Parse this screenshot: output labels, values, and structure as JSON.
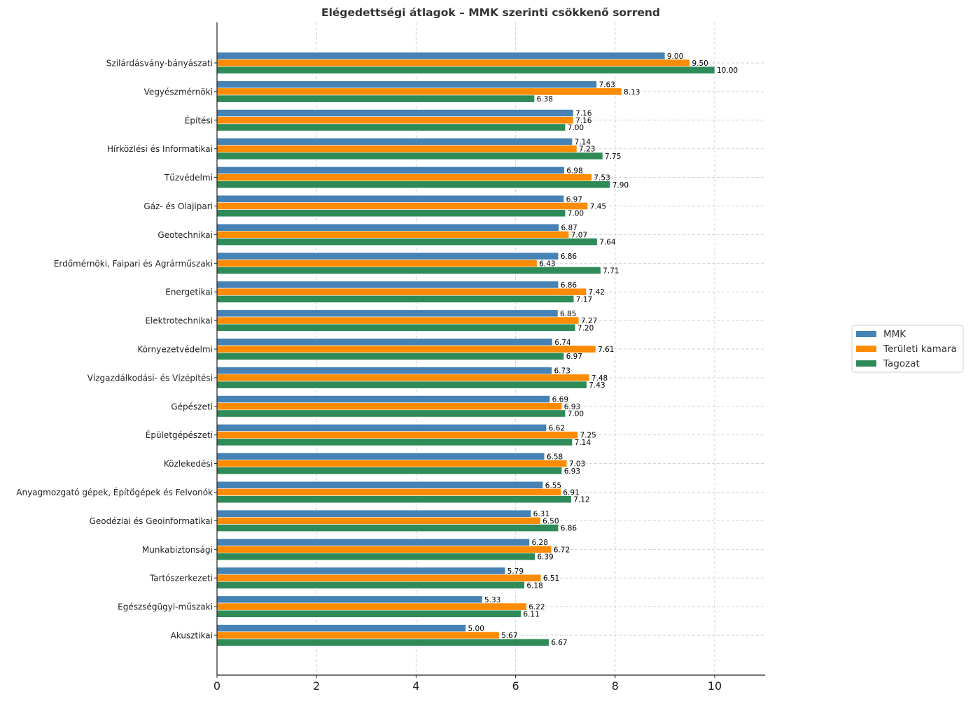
{
  "chart_data": {
    "type": "bar",
    "orientation": "horizontal",
    "title": "Elégedettségi átlagok – MMK szerinti csökkenő sorrend",
    "xlabel": "",
    "ylabel": "",
    "xlim": [
      0,
      11
    ],
    "xticks": [
      0,
      2,
      4,
      6,
      8,
      10
    ],
    "grid": true,
    "legend_position": "right",
    "categories": [
      "Szilárdásvány-bányászati",
      "Vegyészmérnöki",
      "Építési",
      "Hírközlési és Informatikai",
      "Tűzvédelmi",
      "Gáz- és Olajipari",
      "Geotechnikai",
      "Erdőmérnöki, Faipari és Agrárműszaki",
      "Energetikai",
      "Elektrotechnikai",
      "Környezetvédelmi",
      "Vízgazdálkodási- és Vízépítési",
      "Gépészeti",
      "Épületgépészeti",
      "Közlekedési",
      "Anyagmozgató gépek, Építőgépek és Felvonók",
      "Geodéziai és Geoinformatikai",
      "Munkabiztonsági",
      "Tartószerkezeti",
      "Egészségügyi-műszaki",
      "Akusztikai"
    ],
    "series": [
      {
        "name": "MMK",
        "color": "#4682b4",
        "values": [
          9.0,
          7.63,
          7.16,
          7.14,
          6.98,
          6.97,
          6.87,
          6.86,
          6.86,
          6.85,
          6.74,
          6.73,
          6.69,
          6.62,
          6.58,
          6.55,
          6.31,
          6.28,
          5.79,
          5.33,
          5.0
        ]
      },
      {
        "name": "Területi kamara",
        "color": "#ff8c00",
        "values": [
          9.5,
          8.13,
          7.16,
          7.23,
          7.53,
          7.45,
          7.07,
          6.43,
          7.42,
          7.27,
          7.61,
          7.48,
          6.93,
          7.25,
          7.03,
          6.91,
          6.5,
          6.72,
          6.51,
          6.22,
          5.67
        ]
      },
      {
        "name": "Tagozat",
        "color": "#2e8b57",
        "values": [
          10.0,
          6.38,
          7.0,
          7.75,
          7.9,
          7.0,
          7.64,
          7.71,
          7.17,
          7.2,
          6.97,
          7.43,
          7.0,
          7.14,
          6.93,
          7.12,
          6.86,
          6.39,
          6.18,
          6.11,
          6.67
        ]
      }
    ]
  }
}
